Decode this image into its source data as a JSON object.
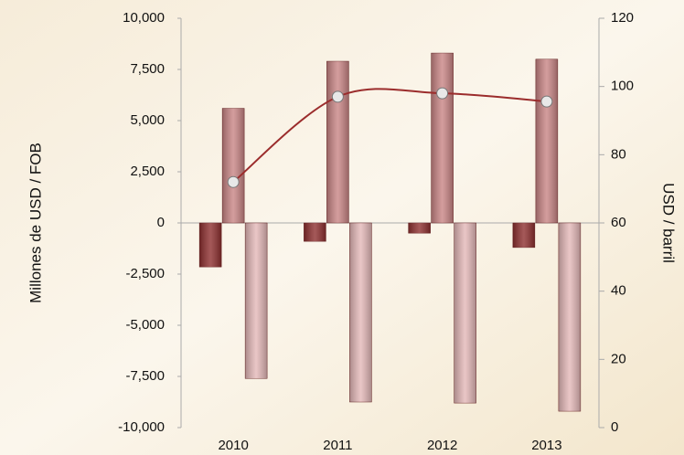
{
  "chart_data": {
    "type": "bar",
    "categories": [
      "2010",
      "2011",
      "2012",
      "2013"
    ],
    "series": [
      {
        "color": "#8e2f2f",
        "values": [
          -2150,
          -900,
          -500,
          -1200
        ]
      },
      {
        "color": "#c98585",
        "values": [
          5600,
          7900,
          8300,
          8000
        ]
      },
      {
        "color": "#e4b8b8",
        "values": [
          -7600,
          -8750,
          -8800,
          -9200
        ]
      },
      {
        "color": "#9b2c2c",
        "values": [
          72,
          97,
          98,
          95.6
        ],
        "axis": "y2",
        "type": "line"
      }
    ],
    "ylabel": "Millones de USD / FOB",
    "y2label": "USD / barril",
    "ylim": [
      -10000,
      10000
    ],
    "yticks": [
      {
        "value": -10000,
        "label": "-10,000"
      },
      {
        "value": -7500,
        "label": "-7,500"
      },
      {
        "value": -5000,
        "label": "-5,000"
      },
      {
        "value": -2500,
        "label": "-2,500"
      },
      0,
      {
        "value": 2500,
        "label": "2,500"
      },
      {
        "value": 5000,
        "label": "5,000"
      },
      {
        "value": 7500,
        "label": "7,500"
      },
      {
        "value": 10000,
        "label": "10,000"
      }
    ],
    "y2lim": [
      0,
      120
    ],
    "y2ticks": [
      0,
      20,
      40,
      60,
      80,
      100,
      120
    ]
  }
}
